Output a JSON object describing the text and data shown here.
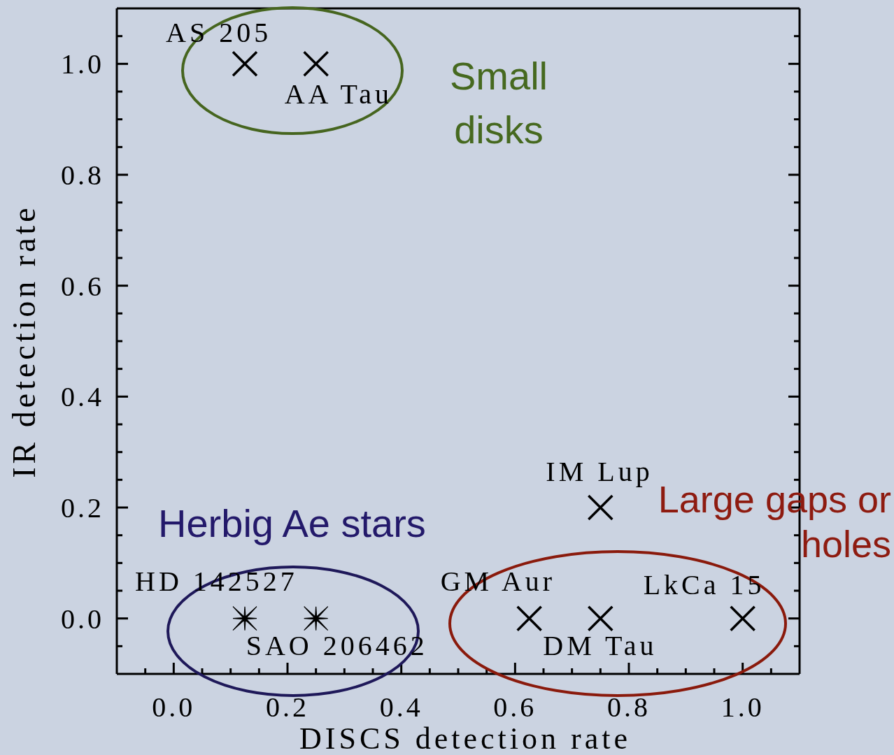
{
  "chart_data": {
    "type": "scatter",
    "xlabel": "DISCS detection rate",
    "ylabel": "IR detection rate",
    "annotations": [
      "Small disks",
      "Herbig Ae stars",
      "Large gaps or holes"
    ],
    "xlim": [
      -0.1,
      1.1
    ],
    "ylim": [
      -0.1,
      1.1
    ],
    "xticks": [
      {
        "value": -0.05,
        "label": null
      },
      {
        "value": 0,
        "label": "0.0"
      },
      {
        "value": 0.05,
        "label": null
      },
      {
        "value": 0.1,
        "label": null
      },
      {
        "value": 0.15,
        "label": null
      },
      0.2,
      {
        "value": 0.25,
        "label": null
      },
      {
        "value": 0.3,
        "label": null
      },
      {
        "value": 0.35,
        "label": null
      },
      0.4,
      {
        "value": 0.45,
        "label": null
      },
      {
        "value": 0.5,
        "label": null
      },
      {
        "value": 0.55,
        "label": null
      },
      0.6,
      {
        "value": 0.65,
        "label": null
      },
      {
        "value": 0.7,
        "label": null
      },
      {
        "value": 0.75,
        "label": null
      },
      0.8,
      {
        "value": 0.85,
        "label": null
      },
      {
        "value": 0.9,
        "label": null
      },
      {
        "value": 0.95,
        "label": null
      },
      {
        "value": 1,
        "label": "1.0"
      },
      {
        "value": 1.05,
        "label": null
      }
    ],
    "yticks": [
      {
        "value": -0.05,
        "label": null
      },
      {
        "value": 0,
        "label": "0.0"
      },
      {
        "value": 0.05,
        "label": null
      },
      {
        "value": 0.1,
        "label": null
      },
      {
        "value": 0.15,
        "label": null
      },
      0.2,
      {
        "value": 0.25,
        "label": null
      },
      {
        "value": 0.3,
        "label": null
      },
      {
        "value": 0.35,
        "label": null
      },
      0.4,
      {
        "value": 0.45,
        "label": null
      },
      {
        "value": 0.5,
        "label": null
      },
      {
        "value": 0.55,
        "label": null
      },
      0.6,
      {
        "value": 0.65,
        "label": null
      },
      {
        "value": 0.7,
        "label": null
      },
      {
        "value": 0.75,
        "label": null
      },
      0.8,
      {
        "value": 0.85,
        "label": null
      },
      {
        "value": 0.9,
        "label": null
      },
      {
        "value": 0.95,
        "label": null
      },
      {
        "value": 1,
        "label": "1.0"
      },
      {
        "value": 1.05,
        "label": null
      }
    ],
    "marker": "cross",
    "series": [
      {
        "name": "AS 205",
        "color": "#000000",
        "x": [
          0.125
        ],
        "values": [
          1.0
        ]
      },
      {
        "name": "AA Tau",
        "color": "#000000",
        "x": [
          0.25
        ],
        "values": [
          1.0
        ]
      },
      {
        "name": "IM Lup",
        "color": "#000000",
        "x": [
          0.75
        ],
        "values": [
          0.2
        ]
      },
      {
        "name": "HD 142527",
        "color": "#000000",
        "marker": "star",
        "x": [
          0.125
        ],
        "values": [
          0
        ]
      },
      {
        "name": "SAO 206462",
        "color": "#000000",
        "marker": "star",
        "x": [
          0.25
        ],
        "values": [
          0
        ]
      },
      {
        "name": "GM Aur",
        "color": "#000000",
        "x": [
          0.625
        ],
        "values": [
          0
        ]
      },
      {
        "name": "DM Tau",
        "color": "#000000",
        "x": [
          0.75
        ],
        "values": [
          0
        ]
      },
      {
        "name": "LkCa 15",
        "color": "#000000",
        "x": [
          1.0
        ],
        "values": [
          0
        ]
      }
    ]
  }
}
